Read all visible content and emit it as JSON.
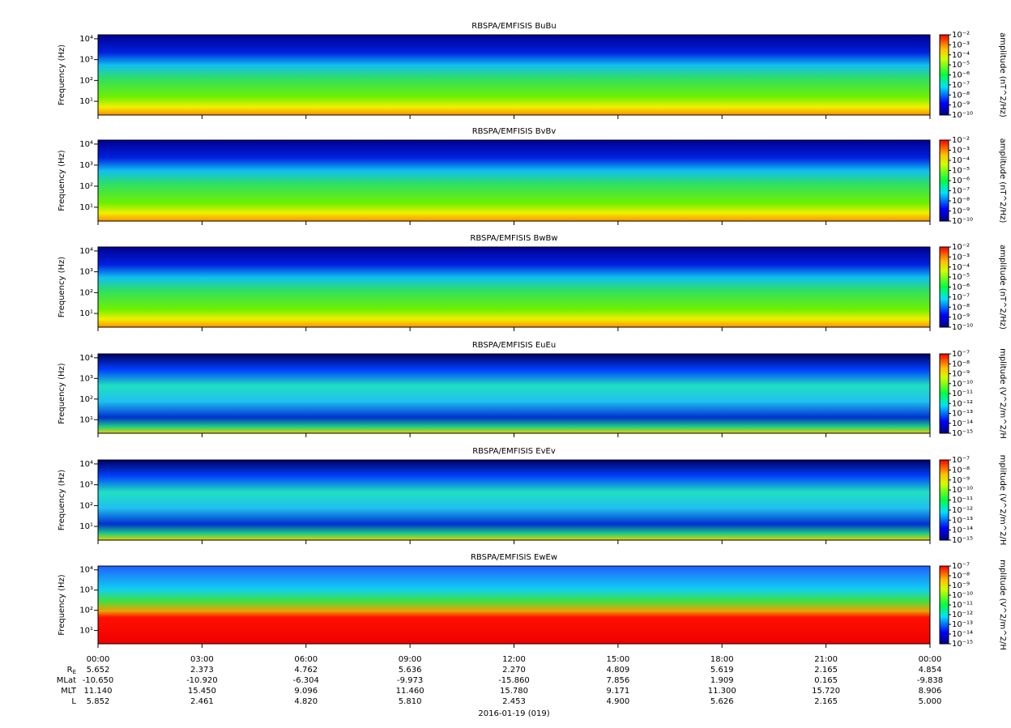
{
  "chart_data": [
    {
      "type": "spectrogram",
      "title": "RBSPA/EMFISIS  BuBu",
      "ylabel": "Frequency (Hz)",
      "log_y": true,
      "ylim": [
        2.2,
        15500
      ],
      "yticks": [
        {
          "value": 10,
          "label": "10¹"
        },
        {
          "value": 100,
          "label": "10²"
        },
        {
          "value": 1000,
          "label": "10³"
        },
        {
          "value": 10000,
          "label": "10⁴"
        }
      ],
      "colorbar": {
        "label": "amplitude (nT^2/Hz)",
        "log": true,
        "lim": [
          1e-10,
          0.01
        ],
        "ticks": [
          {
            "value": 0.01,
            "label": "10⁻²"
          },
          {
            "value": 0.001,
            "label": "10⁻³"
          },
          {
            "value": 0.0001,
            "label": "10⁻⁴"
          },
          {
            "value": 1e-05,
            "label": "10⁻⁵"
          },
          {
            "value": 1e-06,
            "label": "10⁻⁶"
          },
          {
            "value": 1e-07,
            "label": "10⁻⁷"
          },
          {
            "value": 1e-08,
            "label": "10⁻⁸"
          },
          {
            "value": 1e-09,
            "label": "10⁻⁹"
          },
          {
            "value": 1e-10,
            "label": "10⁻¹⁰"
          }
        ]
      }
    },
    {
      "type": "spectrogram",
      "title": "RBSPA/EMFISIS  BvBv",
      "ylabel": "Frequency (Hz)",
      "log_y": true,
      "ylim": [
        2.2,
        15500
      ],
      "yticks": [
        {
          "value": 10,
          "label": "10¹"
        },
        {
          "value": 100,
          "label": "10²"
        },
        {
          "value": 1000,
          "label": "10³"
        },
        {
          "value": 10000,
          "label": "10⁴"
        }
      ],
      "colorbar": {
        "label": "amplitude (nT^2/Hz)",
        "log": true,
        "lim": [
          1e-10,
          0.01
        ],
        "ticks": [
          {
            "value": 0.01,
            "label": "10⁻²"
          },
          {
            "value": 0.001,
            "label": "10⁻³"
          },
          {
            "value": 0.0001,
            "label": "10⁻⁴"
          },
          {
            "value": 1e-05,
            "label": "10⁻⁵"
          },
          {
            "value": 1e-06,
            "label": "10⁻⁶"
          },
          {
            "value": 1e-07,
            "label": "10⁻⁷"
          },
          {
            "value": 1e-08,
            "label": "10⁻⁸"
          },
          {
            "value": 1e-09,
            "label": "10⁻⁹"
          },
          {
            "value": 1e-10,
            "label": "10⁻¹⁰"
          }
        ]
      }
    },
    {
      "type": "spectrogram",
      "title": "RBSPA/EMFISIS  BwBw",
      "ylabel": "Frequency (Hz)",
      "log_y": true,
      "ylim": [
        2.2,
        15500
      ],
      "yticks": [
        {
          "value": 10,
          "label": "10¹"
        },
        {
          "value": 100,
          "label": "10²"
        },
        {
          "value": 1000,
          "label": "10³"
        },
        {
          "value": 10000,
          "label": "10⁴"
        }
      ],
      "colorbar": {
        "label": "amplitude (nT^2/Hz)",
        "log": true,
        "lim": [
          1e-10,
          0.01
        ],
        "ticks": [
          {
            "value": 0.01,
            "label": "10⁻²"
          },
          {
            "value": 0.001,
            "label": "10⁻³"
          },
          {
            "value": 0.0001,
            "label": "10⁻⁴"
          },
          {
            "value": 1e-05,
            "label": "10⁻⁵"
          },
          {
            "value": 1e-06,
            "label": "10⁻⁶"
          },
          {
            "value": 1e-07,
            "label": "10⁻⁷"
          },
          {
            "value": 1e-08,
            "label": "10⁻⁸"
          },
          {
            "value": 1e-09,
            "label": "10⁻⁹"
          },
          {
            "value": 1e-10,
            "label": "10⁻¹⁰"
          }
        ]
      }
    },
    {
      "type": "spectrogram",
      "title": "RBSPA/EMFISIS  EuEu",
      "ylabel": "Frequency (Hz)",
      "log_y": true,
      "ylim": [
        2.2,
        15500
      ],
      "yticks": [
        {
          "value": 10,
          "label": "10¹"
        },
        {
          "value": 100,
          "label": "10²"
        },
        {
          "value": 1000,
          "label": "10³"
        },
        {
          "value": 10000,
          "label": "10⁴"
        }
      ],
      "colorbar": {
        "label": "mplitude (V^2/m^2/H",
        "log": true,
        "lim": [
          1e-15,
          1e-07
        ],
        "ticks": [
          {
            "value": 1e-07,
            "label": "10⁻⁷"
          },
          {
            "value": 1e-08,
            "label": "10⁻⁸"
          },
          {
            "value": 1e-09,
            "label": "10⁻⁹"
          },
          {
            "value": 1e-10,
            "label": "10⁻¹⁰"
          },
          {
            "value": 1e-11,
            "label": "10⁻¹¹"
          },
          {
            "value": 1e-12,
            "label": "10⁻¹²"
          },
          {
            "value": 1e-13,
            "label": "10⁻¹³"
          },
          {
            "value": 1e-14,
            "label": "10⁻¹⁴"
          },
          {
            "value": 1e-15,
            "label": "10⁻¹⁵"
          }
        ]
      }
    },
    {
      "type": "spectrogram",
      "title": "RBSPA/EMFISIS  EvEv",
      "ylabel": "Frequency (Hz)",
      "log_y": true,
      "ylim": [
        2.2,
        15500
      ],
      "yticks": [
        {
          "value": 10,
          "label": "10¹"
        },
        {
          "value": 100,
          "label": "10²"
        },
        {
          "value": 1000,
          "label": "10³"
        },
        {
          "value": 10000,
          "label": "10⁴"
        }
      ],
      "colorbar": {
        "label": "mplitude (V^2/m^2/H",
        "log": true,
        "lim": [
          1e-15,
          1e-07
        ],
        "ticks": [
          {
            "value": 1e-07,
            "label": "10⁻⁷"
          },
          {
            "value": 1e-08,
            "label": "10⁻⁸"
          },
          {
            "value": 1e-09,
            "label": "10⁻⁹"
          },
          {
            "value": 1e-10,
            "label": "10⁻¹⁰"
          },
          {
            "value": 1e-11,
            "label": "10⁻¹¹"
          },
          {
            "value": 1e-12,
            "label": "10⁻¹²"
          },
          {
            "value": 1e-13,
            "label": "10⁻¹³"
          },
          {
            "value": 1e-14,
            "label": "10⁻¹⁴"
          },
          {
            "value": 1e-15,
            "label": "10⁻¹⁵"
          }
        ]
      }
    },
    {
      "type": "spectrogram",
      "title": "RBSPA/EMFISIS  EwEw",
      "ylabel": "Frequency (Hz)",
      "log_y": true,
      "ylim": [
        2.2,
        15500
      ],
      "yticks": [
        {
          "value": 10,
          "label": "10¹"
        },
        {
          "value": 100,
          "label": "10²"
        },
        {
          "value": 1000,
          "label": "10³"
        },
        {
          "value": 10000,
          "label": "10⁴"
        }
      ],
      "colorbar": {
        "label": "mplitude (V^2/m^2/H",
        "log": true,
        "lim": [
          1e-15,
          1e-07
        ],
        "ticks": [
          {
            "value": 1e-07,
            "label": "10⁻⁷"
          },
          {
            "value": 1e-08,
            "label": "10⁻⁸"
          },
          {
            "value": 1e-09,
            "label": "10⁻⁹"
          },
          {
            "value": 1e-10,
            "label": "10⁻¹⁰"
          },
          {
            "value": 1e-11,
            "label": "10⁻¹¹"
          },
          {
            "value": 1e-12,
            "label": "10⁻¹²"
          },
          {
            "value": 1e-13,
            "label": "10⁻¹³"
          },
          {
            "value": 1e-14,
            "label": "10⁻¹⁴"
          },
          {
            "value": 1e-15,
            "label": "10⁻¹⁵"
          }
        ]
      },
      "xlim": [
        0,
        24
      ],
      "xticks": [
        {
          "value": 0,
          "label": "00:00"
        },
        {
          "value": 3,
          "label": "03:00"
        },
        {
          "value": 6,
          "label": "06:00"
        },
        {
          "value": 9,
          "label": "09:00"
        },
        {
          "value": 12,
          "label": "12:00"
        },
        {
          "value": 15,
          "label": "15:00"
        },
        {
          "value": 18,
          "label": "18:00"
        },
        {
          "value": 21,
          "label": "21:00"
        },
        {
          "value": 24,
          "label": "00:00"
        }
      ]
    }
  ],
  "ephemeris": [
    {
      "label": "R",
      "subscript": "E",
      "values": [
        "5.652",
        "2.373",
        "4.762",
        "5.636",
        "2.270",
        "4.809",
        "5.619",
        "2.165",
        "4.854"
      ]
    },
    {
      "label": "MLat",
      "values": [
        "-10.650",
        "-10.920",
        "-6.304",
        "-9.973",
        "-15.860",
        "7.856",
        "1.909",
        "0.165",
        "-9.838"
      ]
    },
    {
      "label": "MLT",
      "values": [
        "11.140",
        "15.450",
        "9.096",
        "11.460",
        "15.780",
        "9.171",
        "11.300",
        "15.720",
        "8.906"
      ]
    },
    {
      "label": "L",
      "values": [
        "5.852",
        "2.461",
        "4.820",
        "5.810",
        "2.453",
        "4.900",
        "5.626",
        "2.165",
        "5.000"
      ]
    }
  ],
  "date_label": "2016-01-19 (019)"
}
